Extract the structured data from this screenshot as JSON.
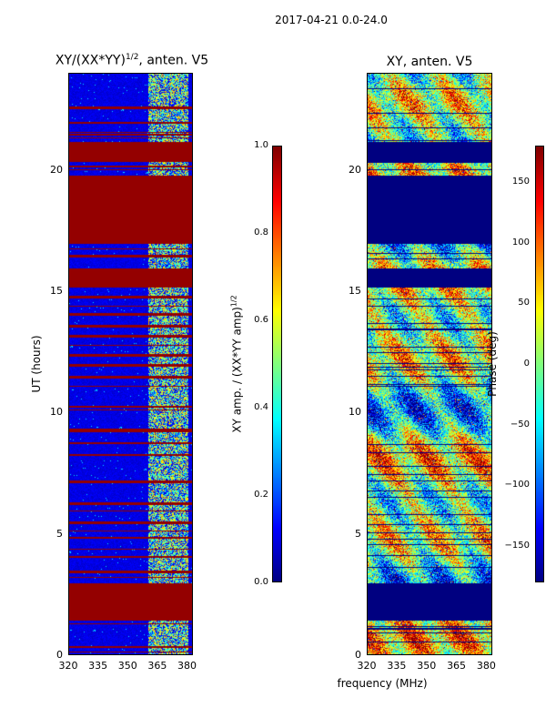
{
  "suptitle": "2017-04-21 0.0-24.0",
  "chart_data": [
    {
      "type": "heatmap",
      "title": "XY/(XX*YY)",
      "title_superscript": "1/2",
      "title_suffix": ", anten. V5",
      "xlabel": "",
      "ylabel": "UT (hours)",
      "xlim": [
        320,
        383
      ],
      "ylim": [
        0,
        24
      ],
      "xticks": [
        "320",
        "335",
        "350",
        "365",
        "380"
      ],
      "xtick_values": [
        320,
        335,
        350,
        365,
        380
      ],
      "yticks": [
        "0",
        "5",
        "10",
        "15",
        "20"
      ],
      "ytick_values": [
        0,
        5,
        10,
        15,
        20
      ],
      "colormap": "jet",
      "colorbar": {
        "label": "XY amp. / (XX*YY amp)",
        "label_superscript": "1/2",
        "range": [
          0.0,
          1.0
        ],
        "ticks": [
          "0.0",
          "0.2",
          "0.4",
          "0.6",
          "0.8",
          "1.0"
        ],
        "tick_values": [
          0.0,
          0.2,
          0.4,
          0.6,
          0.8,
          1.0
        ]
      },
      "background_value": 0.1,
      "high_band_x": [
        360,
        380
      ],
      "saturated_bands_hours": [
        [
          1.5,
          3.0
        ],
        [
          15.2,
          16.0
        ],
        [
          17.0,
          19.8
        ],
        [
          20.4,
          21.2
        ]
      ],
      "thin_saturated_lines_hours": [
        0.4,
        3.5,
        4.1,
        4.9,
        5.5,
        6.3,
        7.2,
        8.3,
        8.8,
        9.3,
        10.3,
        11.5,
        12.0,
        12.4,
        13.2,
        13.6,
        14.1,
        14.8,
        16.5,
        20.2,
        21.5,
        22.0,
        22.6
      ]
    },
    {
      "type": "heatmap",
      "title": "XY, anten. V5",
      "xlabel": "frequency (MHz)",
      "ylabel": "",
      "xlim": [
        320,
        383
      ],
      "ylim": [
        0,
        24
      ],
      "xticks": [
        "320",
        "335",
        "350",
        "365",
        "380"
      ],
      "xtick_values": [
        320,
        335,
        350,
        365,
        380
      ],
      "yticks": [
        "0",
        "5",
        "10",
        "15",
        "20"
      ],
      "ytick_values": [
        0,
        5,
        10,
        15,
        20
      ],
      "colormap": "jet",
      "colorbar": {
        "label": "Phase (deg)",
        "range": [
          -180,
          180
        ],
        "ticks": [
          "−150",
          "−100",
          "−50",
          "0",
          "50",
          "100",
          "150"
        ],
        "tick_values": [
          -150,
          -100,
          -50,
          0,
          50,
          100,
          150
        ]
      },
      "flagged_bands_hours": [
        [
          1.5,
          3.0
        ],
        [
          15.2,
          16.0
        ],
        [
          17.0,
          19.8
        ],
        [
          20.4,
          21.2
        ]
      ],
      "flagged_value": -180
    }
  ]
}
